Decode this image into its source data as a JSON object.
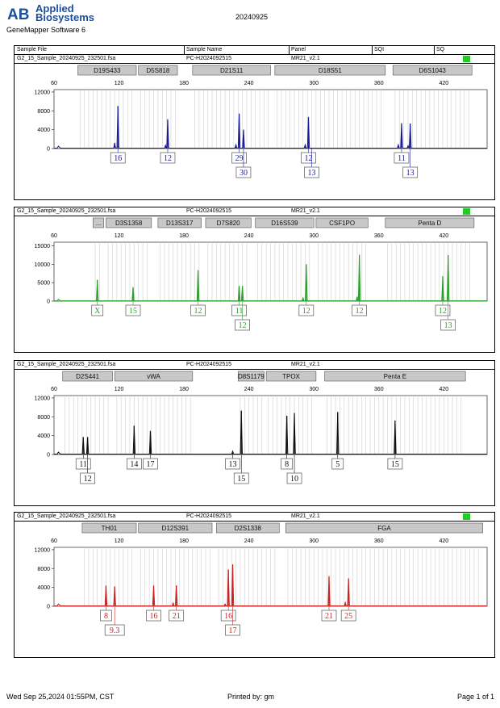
{
  "header": {
    "brand_logo": "AB",
    "brand_line1": "Applied",
    "brand_line2": "Biosystems",
    "software": "GeneMapper Software 6",
    "date": "20240925"
  },
  "table_header": {
    "col_sample_file": "Sample File",
    "col_sample_name": "Sample Name",
    "col_panel": "Panel",
    "col_sqi": "SQI",
    "col_sq": "SQ"
  },
  "footer": {
    "timestamp": "Wed Sep 25,2024 01:55PM, CST",
    "printed_by": "Printed by: gm",
    "page": "Page 1 of 1"
  },
  "chart_data": [
    {
      "type": "line",
      "sample_file": "G2_15_Sample_20240925_232501.fsa",
      "sample_name": "PC-H2024092515",
      "panel": "MR21_v2.1",
      "sq_status_color": "#22cc22",
      "color": "#1a1a9a",
      "x_ticks": [
        60,
        120,
        180,
        240,
        300,
        360,
        420
      ],
      "xlim": [
        60,
        460
      ],
      "y_ticks": [
        0,
        4000,
        8000,
        12000
      ],
      "ylim": [
        0,
        12500
      ],
      "loci": [
        {
          "name": "D19S433",
          "start": 82,
          "end": 136
        },
        {
          "name": "D5S818",
          "start": 138,
          "end": 174
        },
        {
          "name": "D21S11",
          "start": 188,
          "end": 260
        },
        {
          "name": "D18S51",
          "start": 264,
          "end": 366
        },
        {
          "name": "D6S1043",
          "start": 373,
          "end": 446
        }
      ],
      "peaks": [
        {
          "x": 116,
          "h": 1200
        },
        {
          "x": 119,
          "h": 9000
        },
        {
          "x": 163,
          "h": 700
        },
        {
          "x": 165,
          "h": 6200
        },
        {
          "x": 228,
          "h": 800
        },
        {
          "x": 231,
          "h": 7400
        },
        {
          "x": 235,
          "h": 4000
        },
        {
          "x": 292,
          "h": 800
        },
        {
          "x": 295,
          "h": 6700
        },
        {
          "x": 378,
          "h": 800
        },
        {
          "x": 381,
          "h": 5400
        },
        {
          "x": 387,
          "h": 600
        },
        {
          "x": 389,
          "h": 5300
        }
      ],
      "labels": [
        {
          "text": "16",
          "x": 119,
          "row": 1
        },
        {
          "text": "12",
          "x": 165,
          "row": 1
        },
        {
          "text": "29",
          "x": 231,
          "row": 1
        },
        {
          "text": "30",
          "x": 235,
          "row": 2
        },
        {
          "text": "12",
          "x": 295,
          "row": 1
        },
        {
          "text": "13",
          "x": 298,
          "row": 2
        },
        {
          "text": "11",
          "x": 381,
          "row": 1
        },
        {
          "text": "13",
          "x": 389,
          "row": 2
        }
      ]
    },
    {
      "type": "line",
      "sample_file": "G2_15_Sample_20240925_232501.fsa",
      "sample_name": "PC-H2024092515",
      "panel": "MR21_v2.1",
      "sq_status_color": "#22cc22",
      "color": "#2aa02a",
      "x_ticks": [
        60,
        120,
        180,
        240,
        300,
        360,
        420
      ],
      "xlim": [
        60,
        460
      ],
      "y_ticks": [
        0,
        5000,
        10000,
        15000
      ],
      "ylim": [
        0,
        16000
      ],
      "loci": [
        {
          "name": "...",
          "start": 96,
          "end": 106
        },
        {
          "name": "D3S1358",
          "start": 108,
          "end": 150
        },
        {
          "name": "D13S317",
          "start": 156,
          "end": 196
        },
        {
          "name": "D7S820",
          "start": 200,
          "end": 242
        },
        {
          "name": "D16S539",
          "start": 246,
          "end": 300
        },
        {
          "name": "CSF1PO",
          "start": 302,
          "end": 350
        },
        {
          "name": "Penta D",
          "start": 366,
          "end": 448
        }
      ],
      "peaks": [
        {
          "x": 100,
          "h": 5800
        },
        {
          "x": 133,
          "h": 3800
        },
        {
          "x": 193,
          "h": 8400
        },
        {
          "x": 231,
          "h": 4100
        },
        {
          "x": 234,
          "h": 4100
        },
        {
          "x": 290,
          "h": 900
        },
        {
          "x": 293,
          "h": 10000
        },
        {
          "x": 340,
          "h": 1200
        },
        {
          "x": 342,
          "h": 12600
        },
        {
          "x": 419,
          "h": 6800
        },
        {
          "x": 424,
          "h": 12500
        }
      ],
      "labels": [
        {
          "text": "X",
          "x": 100,
          "row": 1
        },
        {
          "text": "15",
          "x": 133,
          "row": 1
        },
        {
          "text": "12",
          "x": 193,
          "row": 1
        },
        {
          "text": "11",
          "x": 231,
          "row": 1
        },
        {
          "text": "12",
          "x": 234,
          "row": 2
        },
        {
          "text": "12",
          "x": 293,
          "row": 1
        },
        {
          "text": "12",
          "x": 342,
          "row": 1
        },
        {
          "text": "12",
          "x": 419,
          "row": 1
        },
        {
          "text": "13",
          "x": 424,
          "row": 2
        }
      ]
    },
    {
      "type": "line",
      "sample_file": "G2_15_Sample_20240925_232501.fsa",
      "sample_name": "PC-H2024092515",
      "panel": "MR21_v2.1",
      "sq_status_color": null,
      "color": "#111111",
      "x_ticks": [
        60,
        120,
        180,
        240,
        300,
        360,
        420
      ],
      "xlim": [
        60,
        460
      ],
      "y_ticks": [
        0,
        4000,
        8000,
        12000
      ],
      "ylim": [
        0,
        12500
      ],
      "loci": [
        {
          "name": "D2S441",
          "start": 68,
          "end": 114
        },
        {
          "name": "vWA",
          "start": 116,
          "end": 188
        },
        {
          "name": "D8S1179",
          "start": 230,
          "end": 254
        },
        {
          "name": "TPOX",
          "start": 256,
          "end": 302
        },
        {
          "name": "Penta E",
          "start": 310,
          "end": 440
        }
      ],
      "peaks": [
        {
          "x": 87,
          "h": 3700
        },
        {
          "x": 91,
          "h": 3700
        },
        {
          "x": 134,
          "h": 6100
        },
        {
          "x": 149,
          "h": 5000
        },
        {
          "x": 225,
          "h": 700
        },
        {
          "x": 233,
          "h": 9300
        },
        {
          "x": 275,
          "h": 8200
        },
        {
          "x": 282,
          "h": 8800
        },
        {
          "x": 322,
          "h": 9000
        },
        {
          "x": 375,
          "h": 7200
        }
      ],
      "labels": [
        {
          "text": "11",
          "x": 87,
          "row": 1
        },
        {
          "text": "12",
          "x": 91,
          "row": 2
        },
        {
          "text": "14",
          "x": 134,
          "row": 1
        },
        {
          "text": "17",
          "x": 149,
          "row": 1
        },
        {
          "text": "13",
          "x": 225,
          "row": 1
        },
        {
          "text": "15",
          "x": 233,
          "row": 2
        },
        {
          "text": "8",
          "x": 275,
          "row": 1
        },
        {
          "text": "10",
          "x": 282,
          "row": 2
        },
        {
          "text": "5",
          "x": 322,
          "row": 1
        },
        {
          "text": "15",
          "x": 375,
          "row": 1
        }
      ]
    },
    {
      "type": "line",
      "sample_file": "G2_15_Sample_20240925_232501.fsa",
      "sample_name": "PC-H2024092515",
      "panel": "MR21_v2.1",
      "sq_status_color": "#22cc22",
      "color": "#cc2020",
      "x_ticks": [
        60,
        120,
        180,
        240,
        300,
        360,
        420
      ],
      "xlim": [
        60,
        460
      ],
      "y_ticks": [
        0,
        4000,
        8000,
        12000
      ],
      "ylim": [
        0,
        12500
      ],
      "loci": [
        {
          "name": "TH01",
          "start": 86,
          "end": 136
        },
        {
          "name": "D12S391",
          "start": 138,
          "end": 206
        },
        {
          "name": "D2S1338",
          "start": 210,
          "end": 268
        },
        {
          "name": "FGA",
          "start": 274,
          "end": 456
        }
      ],
      "peaks": [
        {
          "x": 108,
          "h": 4400
        },
        {
          "x": 116,
          "h": 4200
        },
        {
          "x": 152,
          "h": 4400
        },
        {
          "x": 170,
          "h": 700
        },
        {
          "x": 173,
          "h": 4400
        },
        {
          "x": 218,
          "h": 500
        },
        {
          "x": 221,
          "h": 7800
        },
        {
          "x": 225,
          "h": 8900
        },
        {
          "x": 314,
          "h": 6400
        },
        {
          "x": 329,
          "h": 800
        },
        {
          "x": 332,
          "h": 5900
        }
      ],
      "labels": [
        {
          "text": "8",
          "x": 108,
          "row": 1
        },
        {
          "text": "9.3",
          "x": 116,
          "row": 2
        },
        {
          "text": "16",
          "x": 152,
          "row": 1
        },
        {
          "text": "21",
          "x": 173,
          "row": 1
        },
        {
          "text": "16",
          "x": 221,
          "row": 1
        },
        {
          "text": "17",
          "x": 225,
          "row": 2
        },
        {
          "text": "21",
          "x": 314,
          "row": 1
        },
        {
          "text": "25",
          "x": 332,
          "row": 1
        }
      ]
    }
  ]
}
